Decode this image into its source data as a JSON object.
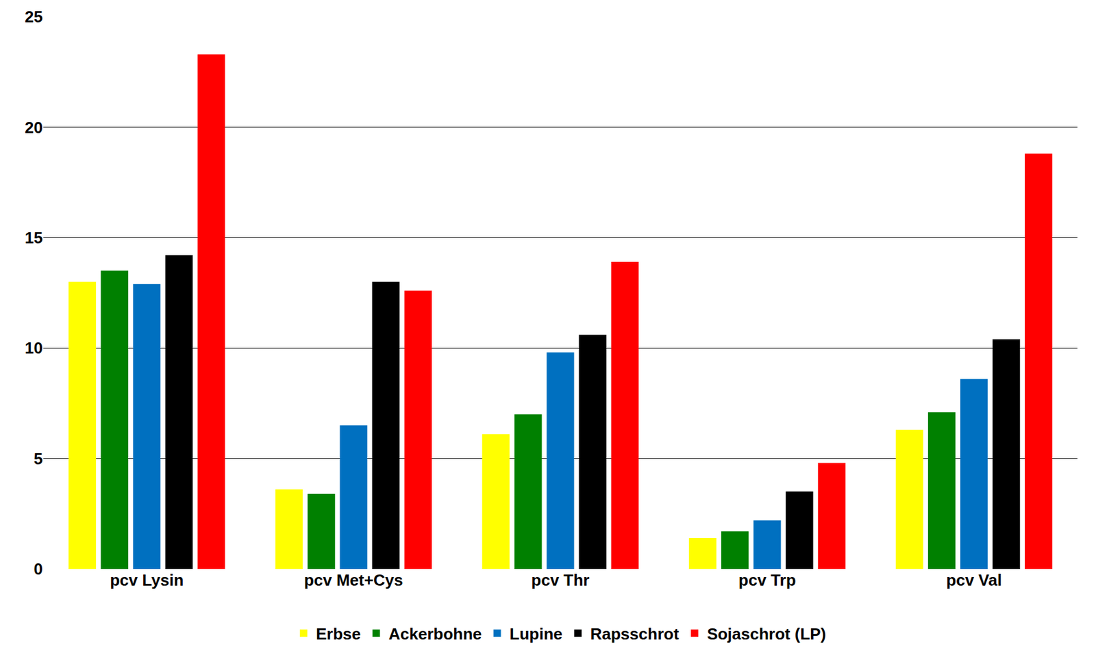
{
  "chart_data": {
    "type": "bar",
    "categories": [
      "pcv Lysin",
      "pcv Met+Cys",
      "pcv Thr",
      "pcv Trp",
      "pcv Val"
    ],
    "series": [
      {
        "name": "Erbse",
        "color": "#FFFF00",
        "values": [
          13.0,
          3.6,
          6.1,
          1.4,
          6.3
        ]
      },
      {
        "name": "Ackerbohne",
        "color": "#008000",
        "values": [
          13.5,
          3.4,
          7.0,
          1.7,
          7.1
        ]
      },
      {
        "name": "Lupine",
        "color": "#0070C0",
        "values": [
          12.9,
          6.5,
          9.8,
          2.2,
          8.6
        ]
      },
      {
        "name": "Rapsschrot",
        "color": "#000000",
        "values": [
          14.2,
          13.0,
          10.6,
          3.5,
          10.4
        ]
      },
      {
        "name": "Sojaschrot (LP)",
        "color": "#FF0000",
        "values": [
          23.3,
          12.6,
          13.9,
          4.8,
          18.8
        ]
      }
    ],
    "ylim": [
      0,
      25
    ],
    "yticks": [
      0,
      5,
      10,
      15,
      20,
      25
    ],
    "grid": true,
    "legend": "bottom"
  }
}
